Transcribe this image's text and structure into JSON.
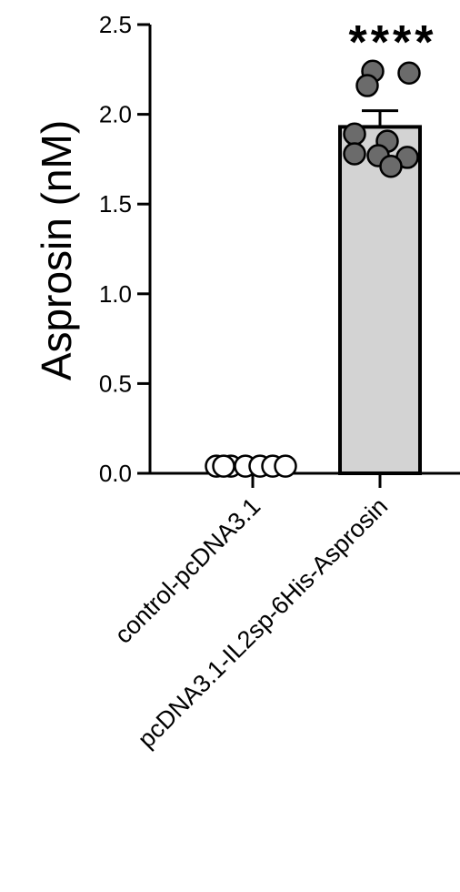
{
  "chart_data": {
    "type": "bar",
    "title": "",
    "ylabel": "Asprosin (nM)",
    "xlabel": "",
    "ylim": [
      0,
      2.5
    ],
    "yticks": [
      0.0,
      0.5,
      1.0,
      1.5,
      2.0,
      2.5
    ],
    "ytick_labels": [
      "0.0",
      "0.5",
      "1.0",
      "1.5",
      "2.0",
      "2.5"
    ],
    "categories": [
      "control-pcDNA3.1",
      "pcDNA3.1-IL2sp-6His-Asprosin"
    ],
    "values": [
      0.04,
      1.93
    ],
    "errors": [
      0.0,
      0.09
    ],
    "points": [
      [
        0.04,
        0.04,
        0.04,
        0.04,
        0.04,
        0.04,
        0.04
      ],
      [
        2.24,
        2.23,
        2.16,
        1.89,
        1.85,
        1.78,
        1.77,
        1.76,
        1.71
      ]
    ],
    "significance": [
      "",
      "****"
    ],
    "grid": false,
    "colors": {
      "bar_fill": "#d3d3d3",
      "bar_stroke": "#000000",
      "control_point_fill": "#ffffff",
      "treated_point_fill": "#6b6b6b",
      "axis": "#000000"
    }
  }
}
